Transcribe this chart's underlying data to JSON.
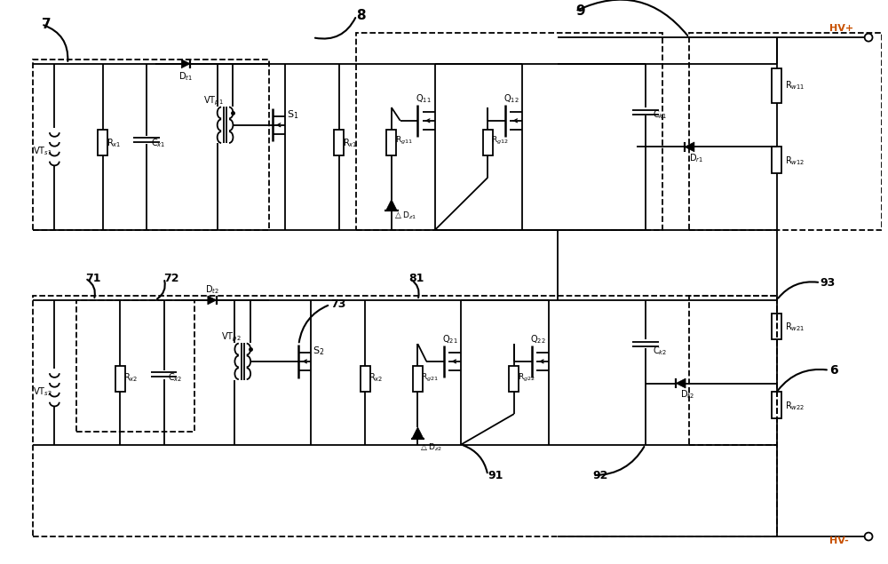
{
  "bg_color": "#ffffff",
  "line_color": "#000000",
  "lw": 1.3,
  "figsize": [
    10.0,
    6.35
  ],
  "dpi": 100
}
